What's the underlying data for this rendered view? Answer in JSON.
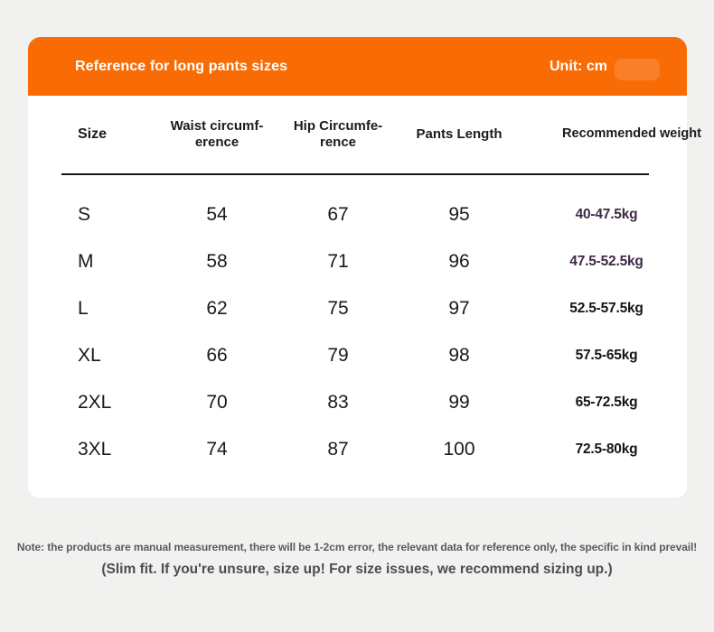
{
  "header": {
    "title": "Reference for long pants sizes",
    "unit_label": "Unit: cm",
    "bg_color": "#f96c05"
  },
  "table": {
    "columns": {
      "size": "Size",
      "waist": "Waist circumf-\nerence",
      "hip": "Hip Circumfe-\nrence",
      "length": "Pants Length",
      "weight": "Recommended weight"
    },
    "rows": [
      {
        "size": "S",
        "waist": "54",
        "hip": "67",
        "length": "95",
        "weight": "40-47.5kg",
        "weight_color": "#3e2a45"
      },
      {
        "size": "M",
        "waist": "58",
        "hip": "71",
        "length": "96",
        "weight": "47.5-52.5kg",
        "weight_color": "#3e2a45"
      },
      {
        "size": "L",
        "waist": "62",
        "hip": "75",
        "length": "97",
        "weight": "52.5-57.5kg",
        "weight_color": "#151515"
      },
      {
        "size": "XL",
        "waist": "66",
        "hip": "79",
        "length": "98",
        "weight": "57.5-65kg",
        "weight_color": "#151515"
      },
      {
        "size": "2XL",
        "waist": "70",
        "hip": "83",
        "length": "99",
        "weight": "65-72.5kg",
        "weight_color": "#151515"
      },
      {
        "size": "3XL",
        "waist": "74",
        "hip": "87",
        "length": "100",
        "weight": "72.5-80kg",
        "weight_color": "#151515"
      }
    ]
  },
  "notes": {
    "line1": "Note: the products are manual measurement, there will be 1-2cm error, the relevant data for reference only, the specific in kind prevail!",
    "line2": "(Slim fit. If you're unsure, size up! For size issues, we recommend sizing up.)"
  }
}
